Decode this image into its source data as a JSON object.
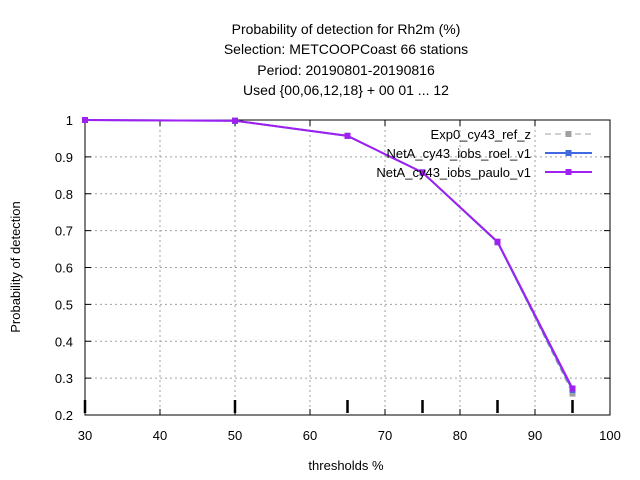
{
  "chart_data": {
    "type": "line",
    "title_lines": [
      "Probability of detection  for Rh2m (%)",
      "Selection: METCOOPCoast     66 stations",
      "Period: 20190801-20190816",
      "Used {00,06,12,18} + 00 01 ... 12"
    ],
    "xlabel": "thresholds %",
    "ylabel": "Probability of detection",
    "xlim": [
      30,
      100
    ],
    "ylim": [
      0.2,
      1.0
    ],
    "xticks": [
      30,
      40,
      50,
      60,
      70,
      80,
      90,
      100
    ],
    "yticks": [
      0.2,
      0.3,
      0.4,
      0.5,
      0.6,
      0.7,
      0.8,
      0.9,
      1.0
    ],
    "ytick_labels": [
      "0.2",
      "0.3",
      "0.4",
      "0.5",
      "0.6",
      "0.7",
      "0.8",
      "0.9",
      "1"
    ],
    "grid": true,
    "legend_position": "top-right",
    "threshold_markers": [
      30,
      50,
      65,
      75,
      85,
      95
    ],
    "series": [
      {
        "name": "Exp0_cy43_ref_z",
        "color": "#a0a0a0",
        "dash": true,
        "x": [
          30,
          50,
          65,
          75,
          85,
          95
        ],
        "y": [
          1.0,
          0.998,
          0.957,
          0.857,
          0.668,
          0.258
        ]
      },
      {
        "name": "NetA_cy43_iobs_roel_v1",
        "color": "#4169e1",
        "dash": false,
        "x": [
          30,
          50,
          65,
          75,
          85,
          95
        ],
        "y": [
          1.0,
          0.998,
          0.957,
          0.858,
          0.669,
          0.268
        ]
      },
      {
        "name": "NetA_cy43_iobs_paulo_v1",
        "color": "#a020f0",
        "dash": false,
        "x": [
          30,
          50,
          65,
          75,
          85,
          95
        ],
        "y": [
          1.0,
          0.998,
          0.957,
          0.858,
          0.67,
          0.272
        ]
      }
    ]
  }
}
